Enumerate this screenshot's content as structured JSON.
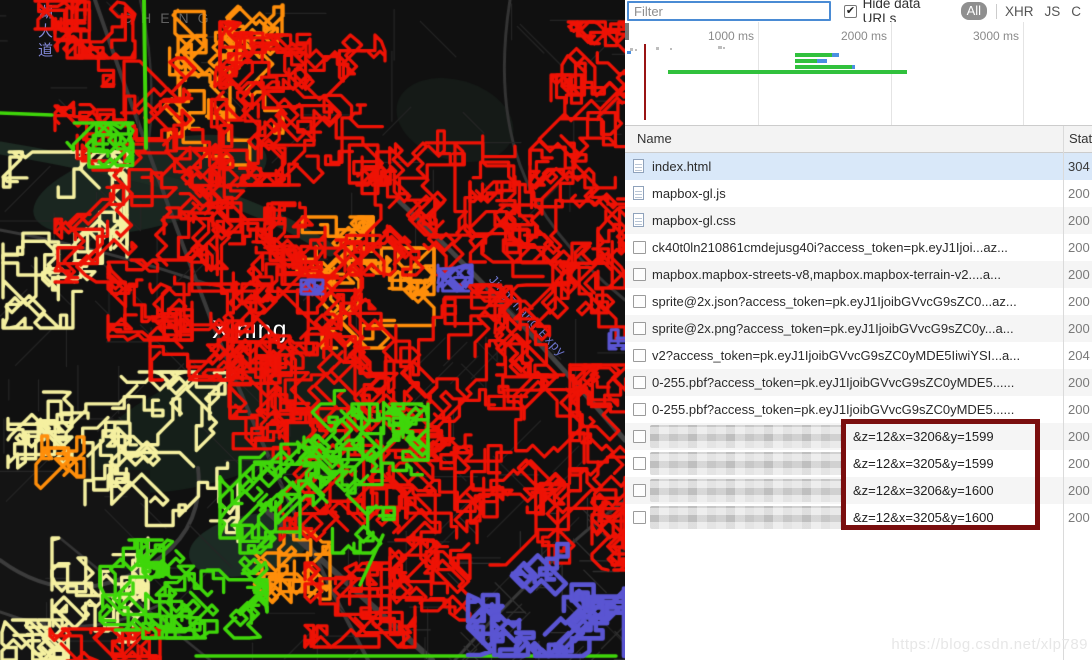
{
  "map": {
    "labels": {
      "city": "Xining",
      "district": "CHENG",
      "expressway": "Jingzhang Expy",
      "avenue": "湖大道"
    }
  },
  "devtools": {
    "toolbar": {
      "filter_placeholder": "Filter",
      "hide_data_urls_label": "Hide data URLs",
      "checkbox_checked": "✔",
      "tabs": [
        "All",
        "XHR",
        "JS",
        "C"
      ]
    },
    "overview": {
      "tick_labels": [
        "1000 ms",
        "2000 ms",
        "3000 ms"
      ]
    },
    "table": {
      "columns": [
        "Name",
        "Stat"
      ],
      "rows": [
        {
          "icon": "doc",
          "name": "index.html",
          "status": "304",
          "selected": true
        },
        {
          "icon": "doc",
          "name": "mapbox-gl.js",
          "status": "200"
        },
        {
          "icon": "doc",
          "name": "mapbox-gl.css",
          "status": "200"
        },
        {
          "icon": "box",
          "name": "ck40t0ln210861cmdejusg40i?access_token=pk.eyJ1Ijoi...az...",
          "status": "200"
        },
        {
          "icon": "box",
          "name": "mapbox.mapbox-streets-v8,mapbox.mapbox-terrain-v2....a...",
          "status": "200"
        },
        {
          "icon": "box",
          "name": "sprite@2x.json?access_token=pk.eyJ1IjoibGVvcG9sZC0...az...",
          "status": "200"
        },
        {
          "icon": "box",
          "name": "sprite@2x.png?access_token=pk.eyJ1IjoibGVvcG9sZC0y...a...",
          "status": "200"
        },
        {
          "icon": "box",
          "name": "v2?access_token=pk.eyJ1IjoibGVvcG9sZC0yMDE5IiwiYSI...a...",
          "status": "204"
        },
        {
          "icon": "box",
          "name": "0-255.pbf?access_token=pk.eyJ1IjoibGVvcG9sZC0yMDE5......",
          "status": "200"
        },
        {
          "icon": "box",
          "name": "0-255.pbf?access_token=pk.eyJ1IjoibGVvcG9sZC0yMDE5......",
          "status": "200"
        },
        {
          "icon": "box",
          "masked": true,
          "query": "&z=12&x=3206&y=1599",
          "status": "200"
        },
        {
          "icon": "box",
          "masked": true,
          "query": "&z=12&x=3205&y=1599",
          "status": "200"
        },
        {
          "icon": "box",
          "masked": true,
          "query": "&z=12&x=3206&y=1600",
          "status": "200"
        },
        {
          "icon": "box",
          "masked": true,
          "query": "&z=12&x=3205&y=1600",
          "status": "200"
        }
      ]
    },
    "watermark": "https://blog.csdn.net/xlp789"
  },
  "colors": {
    "highlight_box": "#7a0e0e",
    "selected_row": "#d9e8f9",
    "timeline_bar_green": "#31c13d",
    "timeline_bar_blue": "#4a8fe2",
    "load_event_line": "#991414",
    "net_red": "#ee1205",
    "net_orange": "#ff8e0a",
    "net_yellow": "#f5f0a0",
    "net_green": "#3fd60a",
    "net_blue": "#5a55d2"
  }
}
